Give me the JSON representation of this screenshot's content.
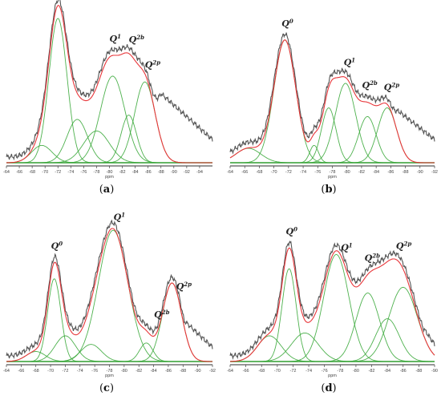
{
  "figure": {
    "panels": [
      {
        "label_open": "(",
        "label_letter": "a",
        "label_close": ")",
        "axis_title": "ppm"
      },
      {
        "label_open": "(",
        "label_letter": "b",
        "label_close": ")",
        "axis_title": "ppm"
      },
      {
        "label_open": "(",
        "label_letter": "c",
        "label_close": ")",
        "axis_title": "ppm"
      },
      {
        "label_open": "(",
        "label_letter": "d",
        "label_close": ")",
        "axis_title": "ppm"
      }
    ]
  },
  "colors": {
    "experimental": "#555555",
    "fit": "#e8363a",
    "component": "#3aa83a",
    "baseline": "#1e8a1e"
  },
  "chart_data": [
    {
      "type": "line",
      "panel": "(a)",
      "xlabel": "ppm",
      "xlim": [
        -64,
        -96
      ],
      "ticks": [
        -64,
        -66,
        -68,
        -70,
        -72,
        -74,
        -76,
        -78,
        -80,
        -82,
        -84,
        -86,
        -88,
        -90,
        -92,
        -94
      ],
      "peak_labels": [
        {
          "text": "Q0",
          "base": "Q",
          "sup": "0",
          "x": -72.0
        },
        {
          "text": "Q1",
          "base": "Q",
          "sup": "1",
          "x": -80.5
        },
        {
          "text": "Q2b",
          "base": "Q",
          "sup": "2b",
          "x": -83.5
        },
        {
          "text": "Q2p",
          "base": "Q",
          "sup": "2p",
          "x": -86.0
        }
      ],
      "components": [
        {
          "center": -72.0,
          "height": 1.0,
          "width": 1.4
        },
        {
          "center": -69.5,
          "height": 0.12,
          "width": 1.6
        },
        {
          "center": -75.0,
          "height": 0.3,
          "width": 1.6
        },
        {
          "center": -78.0,
          "height": 0.22,
          "width": 2.0
        },
        {
          "center": -80.5,
          "height": 0.6,
          "width": 1.9
        },
        {
          "center": -83.0,
          "height": 0.33,
          "width": 1.2
        },
        {
          "center": -85.5,
          "height": 0.56,
          "width": 1.6
        }
      ],
      "tail": {
        "from": -86.0,
        "to": -96.0,
        "start": 0.52,
        "end": 0.12
      }
    },
    {
      "type": "line",
      "panel": "(b)",
      "xlabel": "ppm",
      "xlim": [
        -64,
        -92
      ],
      "ticks": [
        -64,
        -66,
        -68,
        -70,
        -72,
        -74,
        -76,
        -78,
        -80,
        -82,
        -84,
        -86,
        -88,
        -90,
        -92
      ],
      "peak_labels": [
        {
          "text": "Q0",
          "base": "Q",
          "sup": "0",
          "x": -71.5
        },
        {
          "text": "Q1",
          "base": "Q",
          "sup": "1",
          "x": -80.0
        },
        {
          "text": "Q2b",
          "base": "Q",
          "sup": "2b",
          "x": -82.5
        },
        {
          "text": "Q2p",
          "base": "Q",
          "sup": "2p",
          "x": -85.5
        }
      ],
      "components": [
        {
          "center": -71.5,
          "height": 0.85,
          "width": 1.5
        },
        {
          "center": -66.5,
          "height": 0.1,
          "width": 1.7
        },
        {
          "center": -75.5,
          "height": 0.12,
          "width": 0.6
        },
        {
          "center": -77.5,
          "height": 0.38,
          "width": 1.0
        },
        {
          "center": -79.8,
          "height": 0.55,
          "width": 1.4
        },
        {
          "center": -82.8,
          "height": 0.32,
          "width": 1.2
        },
        {
          "center": -85.5,
          "height": 0.38,
          "width": 1.3
        }
      ],
      "tail": {
        "from": -85.0,
        "to": -92.0,
        "start": 0.4,
        "end": 0.12
      }
    },
    {
      "type": "line",
      "panel": "(c)",
      "xlabel": "ppm",
      "xlim": [
        -64,
        -92
      ],
      "ticks": [
        -64,
        -66,
        -68,
        -70,
        -72,
        -74,
        -76,
        -78,
        -80,
        -82,
        -84,
        -86,
        -88,
        -90,
        -92
      ],
      "peak_labels": [
        {
          "text": "Q0",
          "base": "Q",
          "sup": "0",
          "x": -70.5
        },
        {
          "text": "Q1",
          "base": "Q",
          "sup": "1",
          "x": -79.0
        },
        {
          "text": "Q2b",
          "base": "Q",
          "sup": "2b",
          "x": -84.5
        },
        {
          "text": "Q2p",
          "base": "Q",
          "sup": "2p",
          "x": -87.5
        }
      ],
      "components": [
        {
          "center": -70.5,
          "height": 0.58,
          "width": 0.9
        },
        {
          "center": -68.0,
          "height": 0.07,
          "width": 1.3
        },
        {
          "center": -72.0,
          "height": 0.18,
          "width": 1.4
        },
        {
          "center": -75.5,
          "height": 0.12,
          "width": 1.4
        },
        {
          "center": -78.5,
          "height": 0.92,
          "width": 2.0
        },
        {
          "center": -83.0,
          "height": 0.13,
          "width": 0.9
        },
        {
          "center": -86.5,
          "height": 0.55,
          "width": 1.3
        }
      ],
      "tail": {
        "from": -86.0,
        "to": -92.0,
        "start": 0.35,
        "end": 0.06
      }
    },
    {
      "type": "line",
      "panel": "(d)",
      "xlabel": "ppm",
      "xlim": [
        -64,
        -90
      ],
      "ticks": [
        -64,
        -66,
        -68,
        -70,
        -72,
        -74,
        -76,
        -78,
        -80,
        -82,
        -84,
        -86,
        -88,
        -90
      ],
      "peak_labels": [
        {
          "text": "Q0",
          "base": "Q",
          "sup": "0",
          "x": -71.5
        },
        {
          "text": "Q1",
          "base": "Q",
          "sup": "1",
          "x": -78.5
        },
        {
          "text": "Q2b",
          "base": "Q",
          "sup": "2b",
          "x": -81.5
        },
        {
          "text": "Q2p",
          "base": "Q",
          "sup": "2p",
          "x": -85.5
        }
      ],
      "components": [
        {
          "center": -71.5,
          "height": 0.65,
          "width": 0.9
        },
        {
          "center": -69.0,
          "height": 0.18,
          "width": 1.5
        },
        {
          "center": -73.5,
          "height": 0.2,
          "width": 1.7
        },
        {
          "center": -77.5,
          "height": 0.75,
          "width": 1.6
        },
        {
          "center": -81.5,
          "height": 0.48,
          "width": 1.5
        },
        {
          "center": -84.0,
          "height": 0.3,
          "width": 1.5
        },
        {
          "center": -86.0,
          "height": 0.52,
          "width": 1.8
        }
      ],
      "tail": {
        "from": -86.0,
        "to": -90.0,
        "start": 0.4,
        "end": 0.08
      }
    }
  ]
}
